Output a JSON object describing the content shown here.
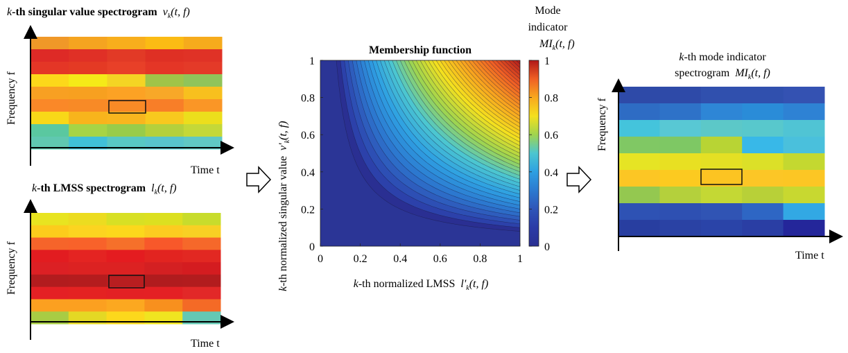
{
  "top_panel": {
    "title_k": "k",
    "title_rest": "-th singular value spectrogram",
    "title_sym": "v",
    "title_sub": "k",
    "title_args": "(t, f)",
    "ylabel": "Frequency f",
    "xlabel": "Time t",
    "colors": [
      [
        "#f09828",
        "#f5a420",
        "#f8ae1c",
        "#fbbb14",
        "#f6ab1c"
      ],
      [
        "#de2a26",
        "#e03026",
        "#e23a26",
        "#df3024",
        "#e03226"
      ],
      [
        "#e43626",
        "#e43a24",
        "#e84028",
        "#e43626",
        "#e43a28"
      ],
      [
        "#fcd81a",
        "#f5ea18",
        "#f4d424",
        "#a0c448",
        "#90c45a"
      ],
      [
        "#f8a022",
        "#f7a020",
        "#fca224",
        "#f8a828",
        "#f8c01e"
      ],
      [
        "#fa8828",
        "#f88a26",
        "#f88a26",
        "#f87e28",
        "#fa9626"
      ],
      [
        "#f8d818",
        "#f8b41c",
        "#f8b61e",
        "#f8c81e",
        "#ecde1c"
      ],
      [
        "#5ac8a0",
        "#a6d446",
        "#98cc4a",
        "#b4d03c",
        "#c4d838"
      ],
      [
        "#60c8b0",
        "#40c0d8",
        "#58c8c4",
        "#58c4cc",
        "#60c8c4"
      ]
    ]
  },
  "bottom_panel": {
    "title_k": "k",
    "title_rest": "-th LMSS spectrogram",
    "title_sym": "l",
    "title_sub": "k",
    "title_args": "(t, f)",
    "ylabel": "Frequency f",
    "xlabel": "Time t",
    "colors": [
      [
        "#e8e420",
        "#ecdc20",
        "#d8e024",
        "#dce020",
        "#c8dc2c"
      ],
      [
        "#fccc1c",
        "#fcd420",
        "#fcd81c",
        "#fccc20",
        "#f8d024"
      ],
      [
        "#f6642a",
        "#f8622a",
        "#f6702a",
        "#f8582a",
        "#f6682a"
      ],
      [
        "#e21c20",
        "#e42422",
        "#e41c20",
        "#e22420",
        "#e22822"
      ],
      [
        "#dc2024",
        "#dc2222",
        "#dc2222",
        "#d42022",
        "#d41c20"
      ],
      [
        "#b21c1e",
        "#b41c1e",
        "#b81e20",
        "#b01c1e",
        "#b21c1e"
      ],
      [
        "#e42024",
        "#e42222",
        "#e32024",
        "#e42024",
        "#e22828"
      ],
      [
        "#fca020",
        "#fca020",
        "#fca820",
        "#f8901e",
        "#f46a26"
      ],
      [
        "#a8cc44",
        "#e4d824",
        "#fcd81c",
        "#f0e420",
        "#64c8b4"
      ]
    ]
  },
  "middle_panel": {
    "title": "Membership function",
    "cbar_title_line1": "Mode",
    "cbar_title_line2": "indicator",
    "cbar_title_sym": "MI",
    "cbar_title_sub": "k",
    "cbar_title_args": "(t, f)",
    "xlabel_k": "k",
    "xlabel_rest": "-th normalized LMSS",
    "xlabel_sym": "l'",
    "xlabel_sub": "k",
    "xlabel_args": "(t, f)",
    "ylabel_k": "k",
    "ylabel_rest": "-th normalized singular value",
    "ylabel_sym": "v'",
    "ylabel_sub": "k",
    "ylabel_args": "(t, f)",
    "xticks": [
      "0",
      "0.2",
      "0.4",
      "0.6",
      "0.8",
      "1"
    ],
    "yticks": [
      "0",
      "0.2",
      "0.4",
      "0.6",
      "0.8",
      "1"
    ],
    "cticks": [
      "0",
      "0.2",
      "0.4",
      "0.6",
      "0.8",
      "1"
    ]
  },
  "right_panel": {
    "title_line1_k": "k",
    "title_line1_rest": "-th mode indicator",
    "title_line2_text": "spectrogram",
    "title_line2_sym": "MI",
    "title_line2_sub": "k",
    "title_line2_args": "(t, f)",
    "ylabel": "Frequency f",
    "xlabel": "Time t",
    "colors": [
      [
        "#2e4aa8",
        "#2e4aa8",
        "#3050ae",
        "#3050ae",
        "#3452b2"
      ],
      [
        "#2e6cc4",
        "#2e72c8",
        "#2e86d6",
        "#2a8cd8",
        "#2e82d4"
      ],
      [
        "#44c4dc",
        "#58c8d4",
        "#5cc8c8",
        "#58c8cc",
        "#50c4d4"
      ],
      [
        "#80c864",
        "#7ec864",
        "#b8d434",
        "#38b8e8",
        "#4ac0dc"
      ],
      [
        "#e6e424",
        "#e8e022",
        "#e4e024",
        "#dce028",
        "#c4d830"
      ],
      [
        "#fcc624",
        "#fcca20",
        "#fcc422",
        "#fcc626",
        "#fcc624"
      ],
      [
        "#94c850",
        "#b4d03c",
        "#c4d834",
        "#b8d038",
        "#c8d830"
      ],
      [
        "#2e52b4",
        "#2e50b2",
        "#3054b4",
        "#2e66c4",
        "#32a8e4"
      ],
      [
        "#283ea0",
        "#2a42a4",
        "#2a44a8",
        "#2a3ea4",
        "#24269a"
      ]
    ]
  }
}
